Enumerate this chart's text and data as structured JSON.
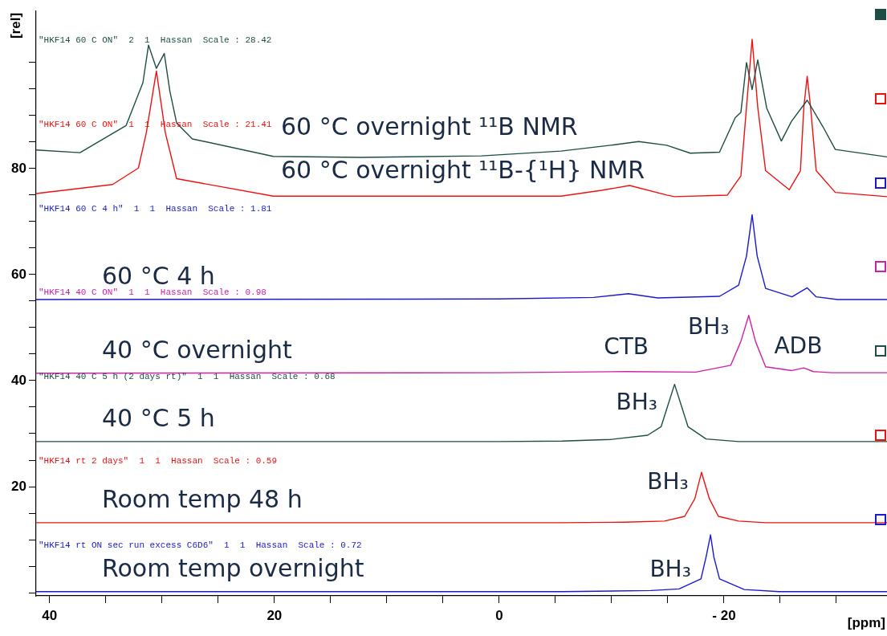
{
  "chart_data": {
    "type": "line",
    "xlabel": "[ppm]",
    "ylabel": "[rel]",
    "xlim": [
      41.2,
      -34.5
    ],
    "ylim": [
      -0.6,
      109.8
    ],
    "xticks": [
      {
        "value": 40,
        "label": "40"
      },
      {
        "value": 35,
        "label": null
      },
      {
        "value": 30,
        "label": null
      },
      {
        "value": 25,
        "label": null
      },
      {
        "value": 20,
        "label": "20"
      },
      {
        "value": 15,
        "label": null
      },
      {
        "value": 10,
        "label": null
      },
      {
        "value": 5,
        "label": null
      },
      {
        "value": 0,
        "label": "0"
      },
      {
        "value": -5,
        "label": null
      },
      {
        "value": -10,
        "label": null
      },
      {
        "value": -15,
        "label": null
      },
      {
        "value": -20,
        "label": "- 20"
      },
      {
        "value": -25,
        "label": null
      },
      {
        "value": -30,
        "label": null
      }
    ],
    "yticks": [
      {
        "value": 0,
        "label": null
      },
      {
        "value": 5,
        "label": null
      },
      {
        "value": 10,
        "label": null
      },
      {
        "value": 15,
        "label": null
      },
      20,
      {
        "value": 25,
        "label": null
      },
      {
        "value": 30,
        "label": null
      },
      {
        "value": 35,
        "label": null
      },
      40,
      {
        "value": 45,
        "label": null
      },
      {
        "value": 50,
        "label": null
      },
      {
        "value": 55,
        "label": null
      },
      60,
      {
        "value": 65,
        "label": null
      },
      {
        "value": 70,
        "label": null
      },
      {
        "value": 75,
        "label": null
      },
      80,
      {
        "value": 85,
        "label": null
      },
      {
        "value": 90,
        "label": null
      },
      {
        "value": 95,
        "label": null
      },
      {
        "value": 100,
        "label": null
      }
    ],
    "grid": false,
    "legend": false,
    "marker": "none",
    "line_style": "solid",
    "series": [
      {
        "name": "60 °C overnight ¹¹B NMR",
        "color": "#1e4d45",
        "x": [
          41.2,
          37.3,
          33.2,
          31.7,
          31.2,
          30.5,
          29.8,
          29.3,
          28.7,
          27.3,
          20.1,
          12.3,
          1.6,
          -5.5,
          -9.9,
          -12.4,
          -14.9,
          -17.0,
          -19.6,
          -21.0,
          -21.5,
          -22.0,
          -22.5,
          -23.0,
          -23.8,
          -25.1,
          -26.0,
          -27.4,
          -28.8,
          -29.9,
          -34.5
        ],
        "values": [
          83.5,
          83.0,
          88.1,
          96.2,
          103.3,
          98.9,
          101.7,
          94.6,
          88.6,
          85.6,
          82.3,
          82.1,
          82.4,
          83.3,
          84.4,
          85.1,
          84.4,
          82.9,
          83.1,
          89.6,
          90.6,
          100.0,
          94.9,
          100.5,
          91.4,
          85.2,
          88.9,
          92.9,
          87.9,
          83.6,
          82.2
        ]
      },
      {
        "name": "60 °C overnight ¹¹B-{¹H} NMR",
        "color": "#ee1111",
        "x": [
          41.2,
          34.4,
          32.1,
          31.4,
          30.5,
          29.7,
          28.7,
          20.1,
          -5.5,
          -9.1,
          -11.6,
          -14.9,
          -15.6,
          -20.3,
          -21.5,
          -22.0,
          -22.5,
          -23.0,
          -23.7,
          -25.8,
          -26.8,
          -27.1,
          -27.4,
          -27.7,
          -28.2,
          -29.9,
          -34.5
        ],
        "values": [
          75.3,
          77.0,
          80.1,
          86.7,
          98.4,
          86.7,
          78.1,
          74.8,
          74.8,
          75.9,
          76.8,
          75.0,
          74.7,
          75.0,
          78.6,
          91.6,
          104.4,
          91.6,
          79.6,
          76.0,
          79.6,
          91.6,
          97.4,
          91.6,
          79.6,
          75.5,
          74.7
        ]
      },
      {
        "name": "60 °C 4 h",
        "color": "#1a1acc",
        "x": [
          41.2,
          0.1,
          -8.4,
          -11.5,
          -14.1,
          -19.6,
          -21.3,
          -22.0,
          -22.5,
          -22.95,
          -23.7,
          -26.05,
          -27.4,
          -28.2,
          -30.1,
          -34.5
        ],
        "values": [
          55.3,
          55.4,
          55.7,
          56.4,
          55.6,
          55.9,
          58.0,
          63.5,
          71.3,
          63.5,
          57.4,
          55.8,
          57.5,
          55.8,
          55.3,
          55.3
        ]
      },
      {
        "name": "40 °C overnight",
        "color": "#cc22aa",
        "x": [
          41.2,
          0.1,
          -11.3,
          -17.5,
          -20.6,
          -21.5,
          -22.2,
          -22.8,
          -23.7,
          -26.05,
          -27.1,
          -27.95,
          -29.6,
          -34.5
        ],
        "values": [
          41.4,
          41.5,
          41.7,
          41.6,
          42.9,
          47.4,
          52.3,
          47.4,
          42.6,
          41.9,
          42.4,
          41.7,
          41.5,
          41.5
        ]
      },
      {
        "name": "40 °C 5 h",
        "color": "#1e4d45",
        "x": [
          41.2,
          0.1,
          -5.6,
          -9.9,
          -13.2,
          -14.4,
          -15.0,
          -15.6,
          -16.2,
          -16.8,
          -18.4,
          -21.3,
          -34.5
        ],
        "values": [
          28.5,
          28.5,
          28.6,
          28.9,
          29.7,
          31.3,
          35.3,
          39.3,
          35.3,
          31.3,
          29.0,
          28.5,
          28.5
        ]
      },
      {
        "name": "Room temp 48 h",
        "color": "#ee1111",
        "x": [
          41.2,
          -5.6,
          -11.2,
          -14.7,
          -16.5,
          -17.4,
          -18.0,
          -18.7,
          -19.5,
          -21.3,
          -23.7,
          -34.5
        ],
        "values": [
          13.2,
          13.2,
          13.3,
          13.5,
          14.4,
          17.7,
          22.7,
          17.7,
          14.4,
          13.5,
          13.2,
          13.2
        ]
      },
      {
        "name": "Room temp overnight",
        "color": "#1a1acc",
        "x": [
          41.2,
          -5.6,
          -13.5,
          -16.0,
          -17.95,
          -18.4,
          -18.8,
          -19.1,
          -19.6,
          -21.8,
          -24.9,
          -34.5
        ],
        "values": [
          0.2,
          0.2,
          0.4,
          0.7,
          2.6,
          6.7,
          10.9,
          6.7,
          2.6,
          0.6,
          0.2,
          0.2
        ]
      }
    ],
    "annotations": [
      "\"HKF14 60 C ON\"  2  1  Hassan  Scale : 28.42",
      "\"HKF14 60 C ON\"  1  1  Hassan  Scale : 21.41",
      "\"HKF14 60 C 4 h\"  1  1  Hassan  Scale : 1.81",
      "\"HKF14 40 C ON\"  1  1  Hassan  Scale : 0.98",
      "\"HKF14 40 C 5 h (2 days rt)\"  1  1  Hassan  Scale : 0.68",
      "\"HKF14 rt 2 days\"  1  1  Hassan  Scale : 0.59",
      "\"HKF14 rt ON sec run excess C6D6\"  1  1  Hassan  Scale : 0.72",
      {
        "text": "CTB",
        "x": -11.3,
        "y": 41.7
      },
      {
        "text": "BH₃",
        "x": -22.2,
        "y": 52.3
      },
      {
        "text": "ADB",
        "x": -27.1,
        "y": 42.4
      },
      {
        "text": "BH₃",
        "x": -15.6,
        "y": 39.3
      },
      {
        "text": "BH₃",
        "x": -18.0,
        "y": 22.7
      },
      {
        "text": "BH₃",
        "x": -18.8,
        "y": 10.9
      }
    ]
  }
}
